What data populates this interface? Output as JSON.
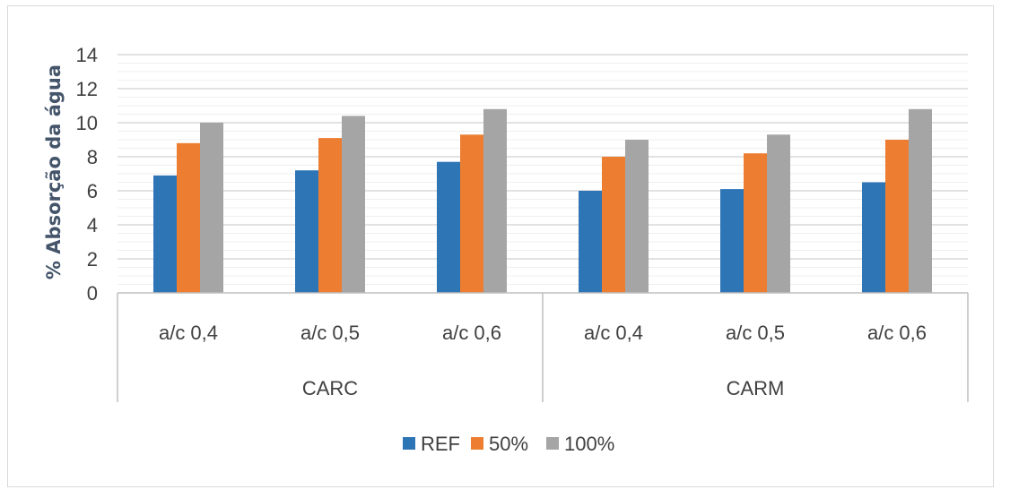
{
  "chart_data": {
    "type": "bar",
    "ylabel": "% Absorção da água",
    "xlabel": "",
    "ylim": [
      0,
      14
    ],
    "yticks": [
      0,
      2,
      4,
      6,
      8,
      10,
      12,
      14
    ],
    "grid": true,
    "legend_position": "bottom",
    "groups": [
      {
        "label": "CARC",
        "categories": [
          "a/c 0,4",
          "a/c 0,5",
          "a/c 0,6"
        ]
      },
      {
        "label": "CARM",
        "categories": [
          "a/c 0,4",
          "a/c 0,5",
          "a/c 0,6"
        ]
      }
    ],
    "categories": [
      "a/c 0,4",
      "a/c 0,5",
      "a/c 0,6",
      "a/c 0,4",
      "a/c 0,5",
      "a/c 0,6"
    ],
    "series": [
      {
        "name": "REF",
        "color": "#2e75b6",
        "values": [
          6.9,
          7.2,
          7.7,
          6.0,
          6.1,
          6.5
        ]
      },
      {
        "name": "50%",
        "color": "#ed7d31",
        "values": [
          8.8,
          9.1,
          9.3,
          8.0,
          8.2,
          9.0
        ]
      },
      {
        "name": "100%",
        "color": "#a5a5a5",
        "values": [
          10.0,
          10.4,
          10.8,
          9.0,
          9.3,
          10.8
        ]
      }
    ]
  }
}
